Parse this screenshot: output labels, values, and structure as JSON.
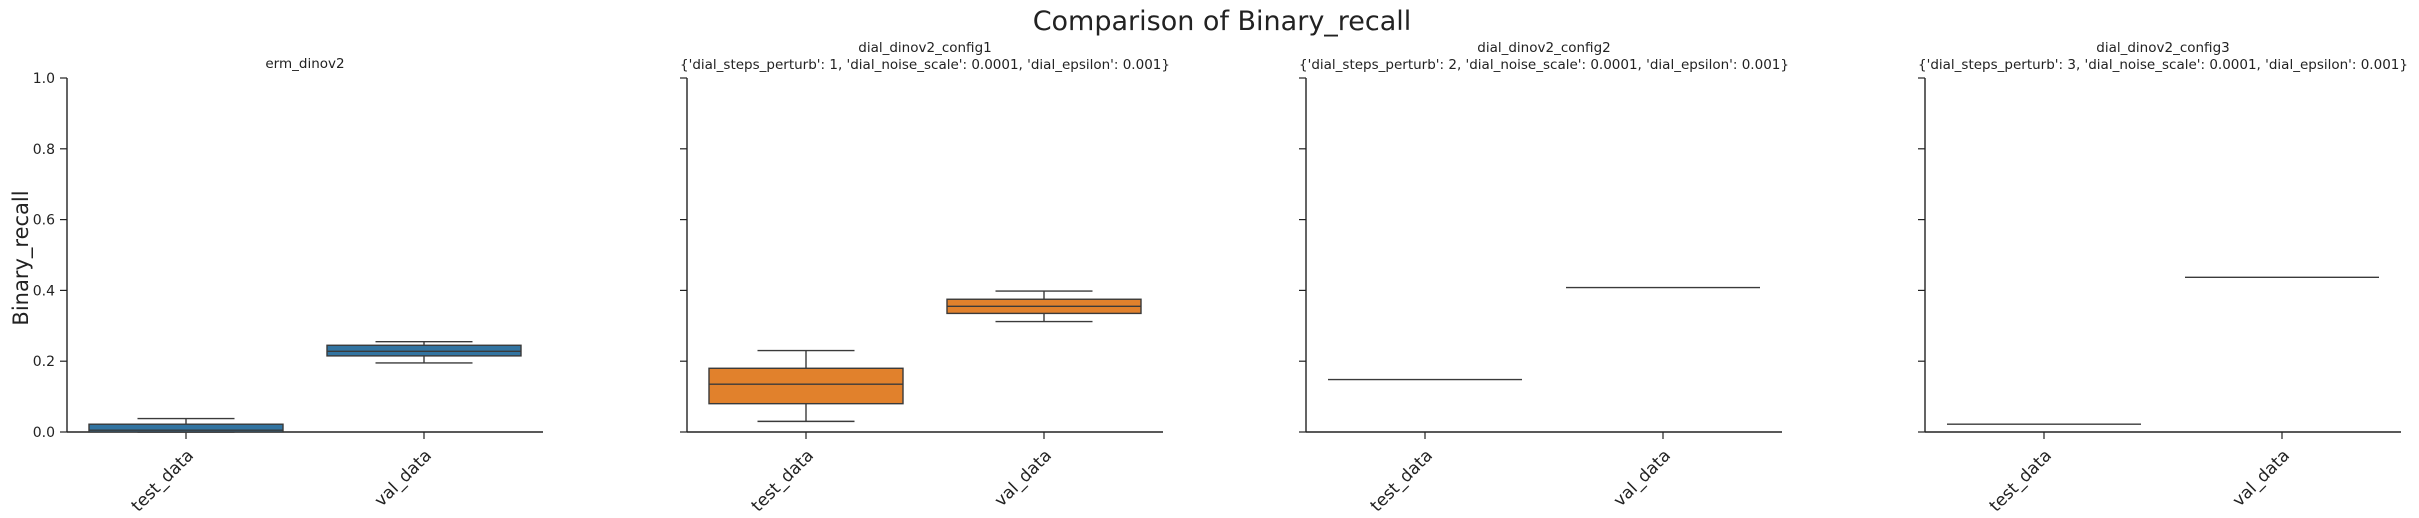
{
  "title": "Comparison of Binary_recall",
  "ylabel": "Binary_recall",
  "colors": {
    "erm": "#3274a1",
    "dial": "#e1812c",
    "axis": "#222222",
    "line": "#3a3a3a"
  },
  "chart_data": [
    {
      "type": "box",
      "title": "erm_dinov2",
      "subtitle": "",
      "categories": [
        "test_data",
        "val_data"
      ],
      "ylim": [
        0,
        1
      ],
      "yticks": [
        "0.0",
        "0.2",
        "0.4",
        "0.6",
        "0.8",
        "1.0"
      ],
      "color": "#3274a1",
      "boxes": [
        {
          "category": "test_data",
          "whisker_low": 0.0,
          "q1": 0.0,
          "median": 0.005,
          "q3": 0.022,
          "whisker_high": 0.038
        },
        {
          "category": "val_data",
          "whisker_low": 0.195,
          "q1": 0.215,
          "median": 0.228,
          "q3": 0.245,
          "whisker_high": 0.255
        }
      ]
    },
    {
      "type": "box",
      "title": "dial_dinov2_config1",
      "subtitle": "{'dial_steps_perturb': 1, 'dial_noise_scale': 0.0001, 'dial_epsilon': 0.001}",
      "categories": [
        "test_data",
        "val_data"
      ],
      "ylim": [
        0,
        1
      ],
      "color": "#e1812c",
      "boxes": [
        {
          "category": "test_data",
          "whisker_low": 0.03,
          "q1": 0.08,
          "median": 0.135,
          "q3": 0.18,
          "whisker_high": 0.23
        },
        {
          "category": "val_data",
          "whisker_low": 0.312,
          "q1": 0.335,
          "median": 0.355,
          "q3": 0.375,
          "whisker_high": 0.398
        }
      ]
    },
    {
      "type": "box",
      "title": "dial_dinov2_config2",
      "subtitle": "{'dial_steps_perturb': 2, 'dial_noise_scale': 0.0001, 'dial_epsilon': 0.001}",
      "categories": [
        "test_data",
        "val_data"
      ],
      "ylim": [
        0,
        1
      ],
      "color": "#e1812c",
      "boxes": [
        {
          "category": "test_data",
          "whisker_low": 0.148,
          "q1": 0.148,
          "median": 0.148,
          "q3": 0.148,
          "whisker_high": 0.148
        },
        {
          "category": "val_data",
          "whisker_low": 0.408,
          "q1": 0.408,
          "median": 0.408,
          "q3": 0.408,
          "whisker_high": 0.408
        }
      ]
    },
    {
      "type": "box",
      "title": "dial_dinov2_config3",
      "subtitle": "{'dial_steps_perturb': 3, 'dial_noise_scale': 0.0001, 'dial_epsilon': 0.001}",
      "categories": [
        "test_data",
        "val_data"
      ],
      "ylim": [
        0,
        1
      ],
      "color": "#e1812c",
      "boxes": [
        {
          "category": "test_data",
          "whisker_low": 0.022,
          "q1": 0.022,
          "median": 0.022,
          "q3": 0.022,
          "whisker_high": 0.022
        },
        {
          "category": "val_data",
          "whisker_low": 0.437,
          "q1": 0.437,
          "median": 0.437,
          "q3": 0.437,
          "whisker_high": 0.437
        }
      ]
    }
  ]
}
